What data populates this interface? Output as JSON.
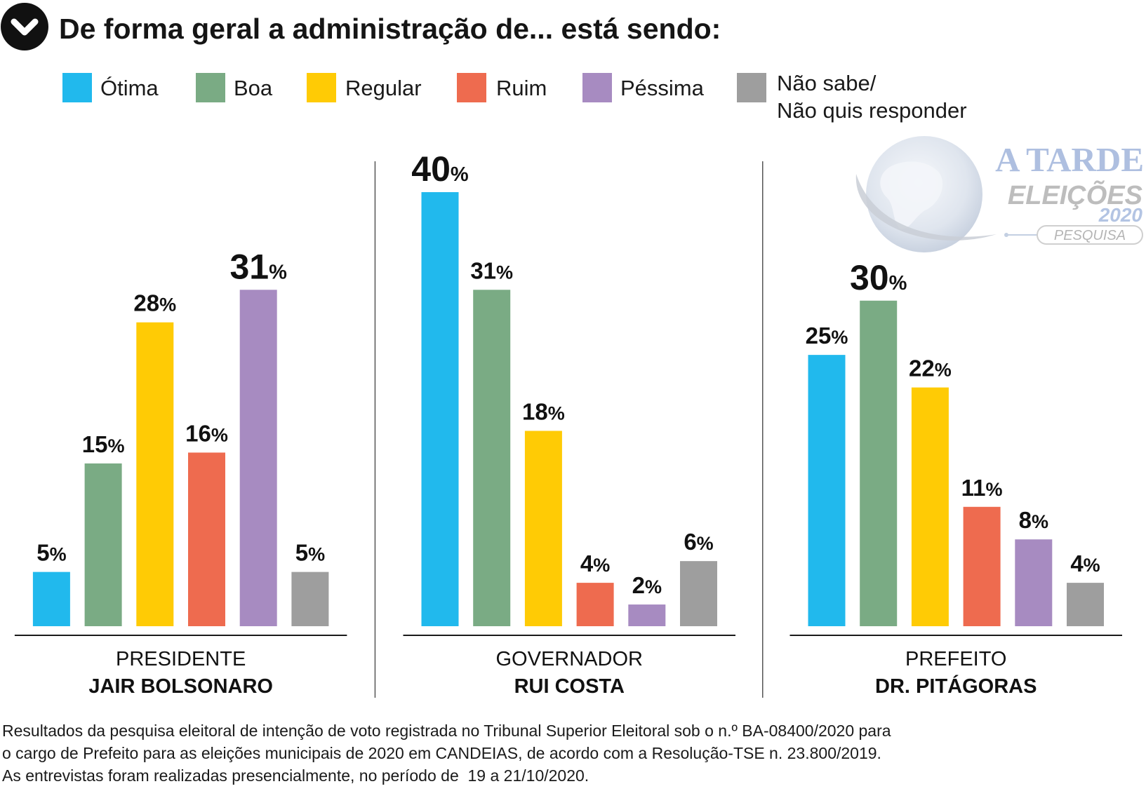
{
  "header": {
    "icon": "chevron-down-icon"
  },
  "chart_data": {
    "type": "bar",
    "title": "De forma geral a administração de... está sendo:",
    "categories": [
      "PRESIDENTE",
      "GOVERNADOR",
      "PREFEITO"
    ],
    "category_names": [
      "JAIR BOLSONARO",
      "RUI COSTA",
      "DR. PITÁGORAS"
    ],
    "unit": "%",
    "series": [
      {
        "name": "Ótima",
        "color": "#21b9ed",
        "values": [
          5,
          40,
          25
        ]
      },
      {
        "name": "Boa",
        "color": "#7aab84",
        "values": [
          15,
          31,
          30
        ]
      },
      {
        "name": "Regular",
        "color": "#ffcb05",
        "values": [
          28,
          18,
          22
        ]
      },
      {
        "name": "Ruim",
        "color": "#ee6b4f",
        "values": [
          16,
          4,
          11
        ]
      },
      {
        "name": "Péssima",
        "color": "#a78bc1",
        "values": [
          31,
          2,
          8
        ]
      },
      {
        "name": "Não sabe/\nNão quis responder",
        "color": "#9e9e9e",
        "values": [
          5,
          6,
          4
        ]
      }
    ],
    "ylim": [
      0,
      40
    ],
    "grid": false,
    "legend": "top"
  },
  "logo": {
    "brand": "A TARDE",
    "line2": "ELEIÇÕES",
    "year": "2020",
    "tag": "PESQUISA"
  },
  "footer": {
    "lines": [
      "Resultados da pesquisa eleitoral de intenção de voto registrada no Tribunal Superior Eleitoral sob o n.º BA-08400/2020 para",
      "o cargo de Prefeito para as eleições municipais de 2020 em CANDEIAS, de acordo com a Resolução-TSE n. 23.800/2019.",
      "As entrevistas foram realizadas presencialmente, no período de  19 a 21/10/2020."
    ]
  }
}
